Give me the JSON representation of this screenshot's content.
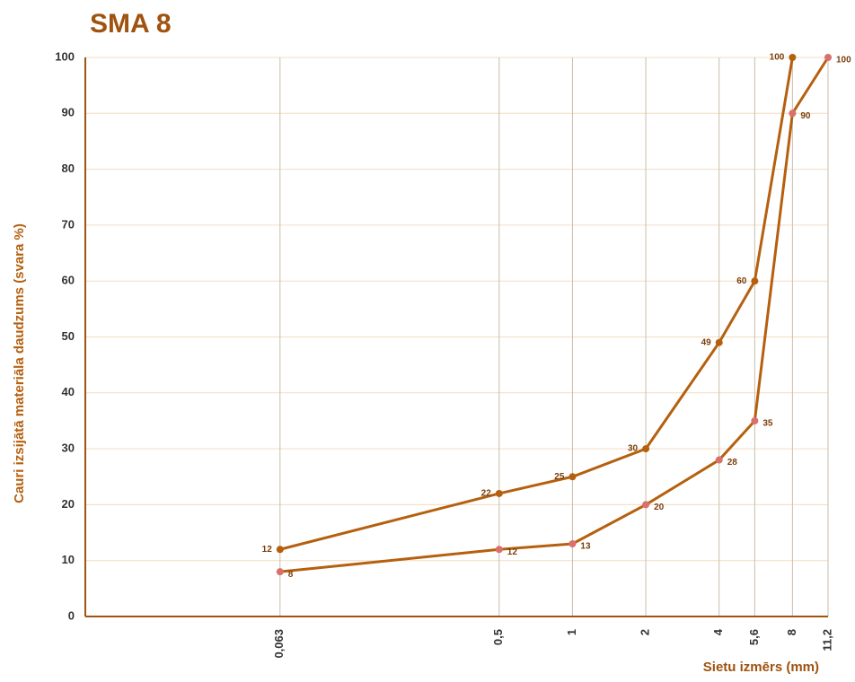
{
  "chart_data": {
    "type": "line",
    "title": "SMA 8",
    "ylabel": "Cauri izsijātā materiāla daudzums (svara %)",
    "xlabel": "Sietu izmērs (mm)",
    "xscale": "log",
    "x": [
      0.063,
      0.5,
      1,
      2,
      4,
      5.6,
      8,
      11.2
    ],
    "series": [
      {
        "color": "#b5600f",
        "marker_color": "#b5600f",
        "label_side": "left",
        "values": [
          12,
          22,
          25,
          30,
          49,
          60,
          100,
          null
        ]
      },
      {
        "color": "#b5600f",
        "marker_color": "#d9706b",
        "label_side": "right",
        "values": [
          8,
          12,
          13,
          20,
          28,
          35,
          90,
          100
        ]
      }
    ],
    "xlim": [
      0.01,
      11.2
    ],
    "xticks": [
      {
        "value": 0.063,
        "label": "0,063"
      },
      {
        "value": 0.5,
        "label": "0,5"
      },
      1,
      2,
      4,
      {
        "value": 5.6,
        "label": "5,6"
      },
      8,
      {
        "value": 11.2,
        "label": "11,2"
      }
    ],
    "ylim": [
      0,
      100
    ],
    "yticks": [
      0,
      10,
      20,
      30,
      40,
      50,
      60,
      70,
      80,
      90,
      100
    ],
    "grid": true
  }
}
